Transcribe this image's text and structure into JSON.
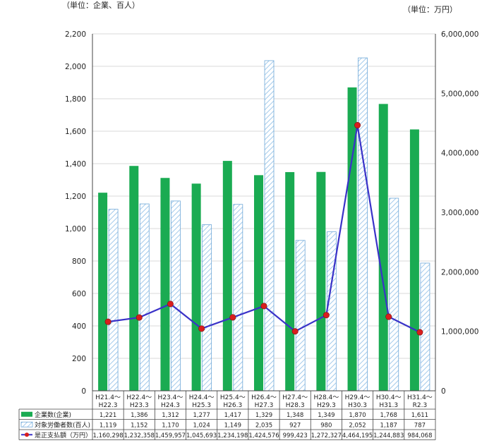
{
  "chart_data": {
    "type": "bar",
    "left_unit_label": "（単位：企業、百人）",
    "right_unit_label": "（単位：万円）",
    "categories": [
      [
        "H21.4～",
        "H22.3"
      ],
      [
        "H22.4～",
        "H23.3"
      ],
      [
        "H23.4～",
        "H24.3"
      ],
      [
        "H24.4～",
        "H25.3"
      ],
      [
        "H25.4～",
        "H26.3"
      ],
      [
        "H26.4～",
        "H27.3"
      ],
      [
        "H27.4～",
        "H28.3"
      ],
      [
        "H28.4～",
        "H29.3"
      ],
      [
        "H29.4～",
        "H30.3"
      ],
      [
        "H30.4～",
        "H31.3"
      ],
      [
        "H31.4～",
        "R2.3"
      ]
    ],
    "y_left": {
      "min": 0,
      "max": 2200,
      "ticks": [
        "0",
        "200",
        "400",
        "600",
        "800",
        "1,000",
        "1,200",
        "1,400",
        "1,600",
        "1,800",
        "2,000",
        "2,200"
      ]
    },
    "y_right": {
      "min": 0,
      "max": 6000000,
      "ticks": [
        "0",
        "1,000,000",
        "2,000,000",
        "3,000,000",
        "4,000,000",
        "5,000,000",
        "6,000,000"
      ]
    },
    "grid": true,
    "series": [
      {
        "name": "企業数(企業)",
        "kind": "bar",
        "axis": "left",
        "color": "#1aab52",
        "values": [
          1221,
          1386,
          1312,
          1277,
          1417,
          1329,
          1348,
          1349,
          1870,
          1768,
          1611
        ],
        "labels": [
          "1,221",
          "1,386",
          "1,312",
          "1,277",
          "1,417",
          "1,329",
          "1,348",
          "1,349",
          "1,870",
          "1,768",
          "1,611"
        ]
      },
      {
        "name": "対象労働者数(百人)",
        "kind": "bar-hatched",
        "axis": "left",
        "color": "#6fa8d8",
        "values": [
          1119,
          1152,
          1170,
          1024,
          1149,
          2035,
          927,
          980,
          2052,
          1187,
          787
        ],
        "labels": [
          "1,119",
          "1,152",
          "1,170",
          "1,024",
          "1,149",
          "2,035",
          "927",
          "980",
          "2,052",
          "1,187",
          "787"
        ]
      },
      {
        "name": "是正支払額（万円）",
        "kind": "line",
        "axis": "right",
        "color": "#3a32c8",
        "marker_color": "#d81e1e",
        "values": [
          1160298,
          1232358,
          1459957,
          1045693,
          1234198,
          1424576,
          999423,
          1272327,
          4464195,
          1244883,
          984068
        ],
        "labels": [
          "1,160,298",
          "1,232,358",
          "1,459,957",
          "1,045,693",
          "1,234,198",
          "1,424,576",
          "999,423",
          "1,272,327",
          "4,464,195",
          "1,244,883",
          "984,068"
        ]
      }
    ]
  }
}
